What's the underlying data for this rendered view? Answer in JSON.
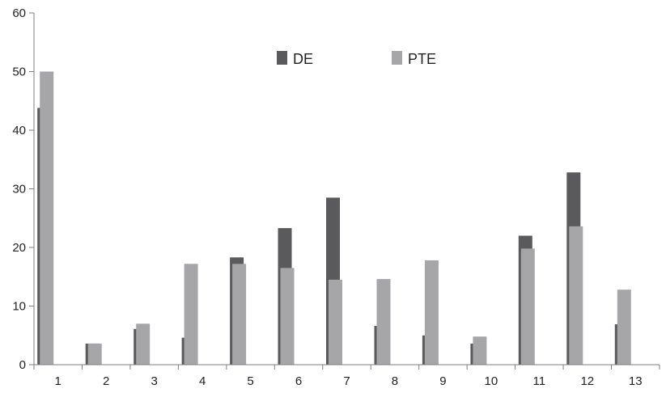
{
  "chart_data": {
    "type": "bar",
    "categories": [
      "1",
      "2",
      "3",
      "4",
      "5",
      "6",
      "7",
      "8",
      "9",
      "10",
      "11",
      "12",
      "13"
    ],
    "series": [
      {
        "name": "DE",
        "color": "#5a5a5c",
        "values": [
          43.8,
          3.6,
          6.1,
          4.6,
          18.3,
          23.3,
          28.5,
          6.6,
          5.0,
          3.6,
          22.0,
          32.8,
          6.9
        ]
      },
      {
        "name": "PTE",
        "color": "#a6a6a8",
        "values": [
          50.0,
          3.6,
          7.0,
          17.2,
          17.2,
          16.5,
          14.5,
          14.6,
          17.8,
          4.8,
          19.8,
          23.6,
          12.8
        ]
      }
    ],
    "ylim": [
      0,
      60
    ],
    "yticks": [
      0,
      10,
      20,
      30,
      40,
      50,
      60
    ],
    "legend_position": "top-center",
    "grid": false
  }
}
